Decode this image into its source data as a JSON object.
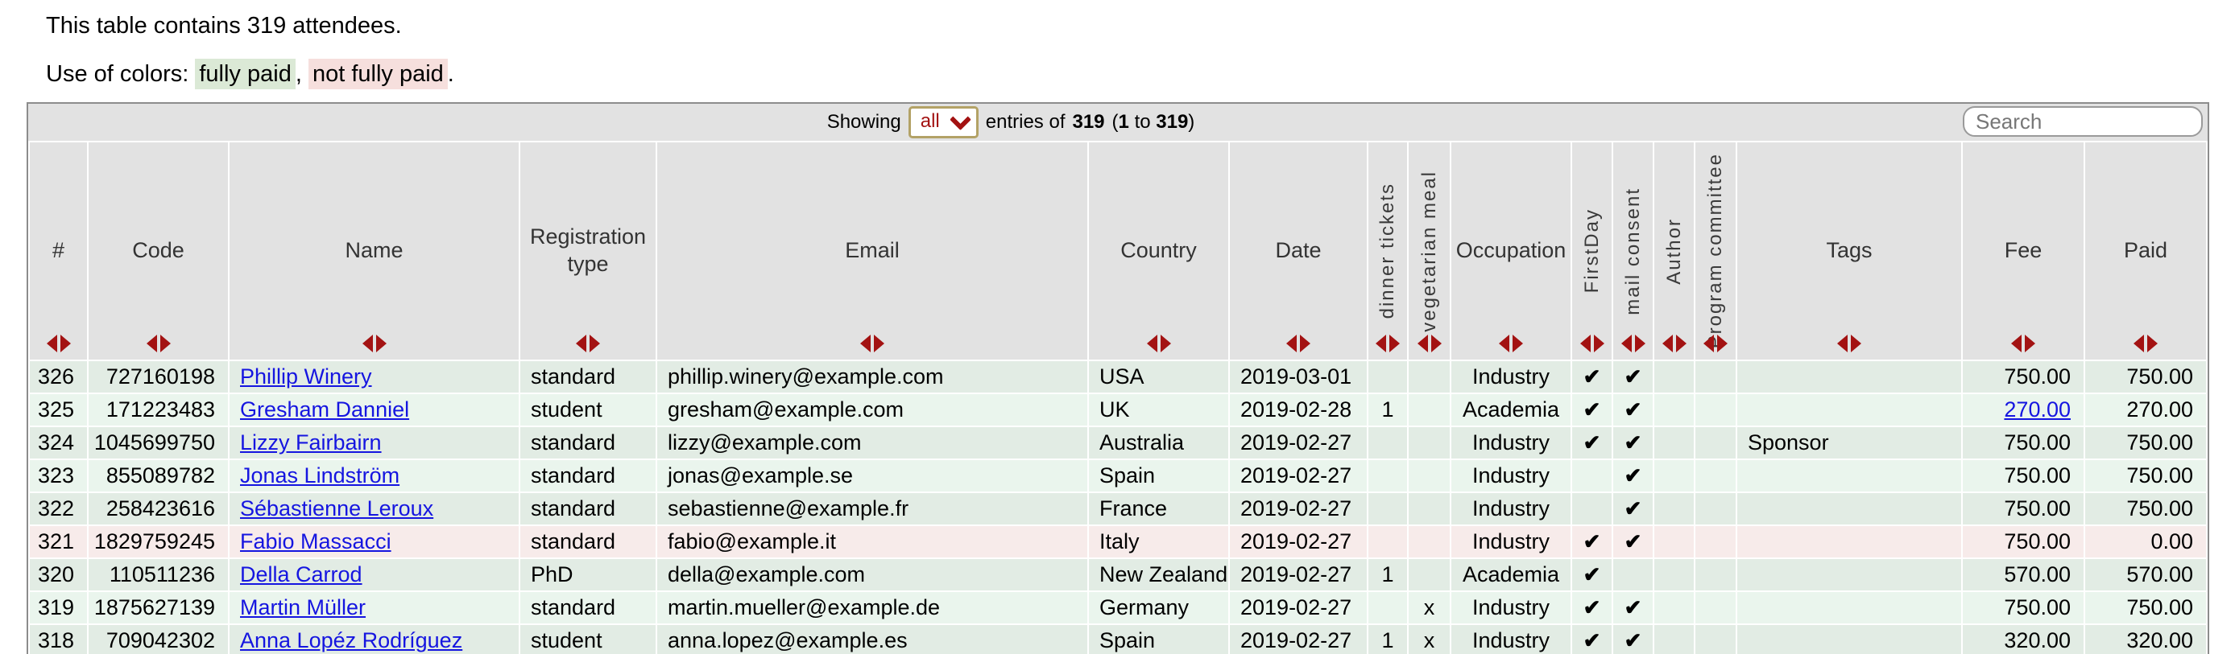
{
  "intro": {
    "line1": "This table contains 319 attendees."
  },
  "legend": {
    "prefix": "Use of colors:",
    "fully_paid": "fully paid",
    "comma": ",",
    "not_fully_paid": "not fully paid",
    "period": "."
  },
  "toolbar": {
    "showing_label": "Showing",
    "page_size_value": "all",
    "entries_of": "entries of",
    "total": "319",
    "range_open": "(",
    "range_from": "1",
    "range_to_word": "to",
    "range_to": "319",
    "range_close": ")",
    "search_placeholder": "Search"
  },
  "icons": {
    "sort_icon": "paired left/right red triangles (sort asc/desc)",
    "chevron_down_icon": "thick red chevron pointing down in page-size select"
  },
  "colors": {
    "accent_red": "#a31212",
    "link_blue": "#1515e0",
    "chrome_bg": "#e2e2e2",
    "table_border": "#8c8c8c",
    "select_border": "#b3a266",
    "fully_paid_bg": "#dbe9d6",
    "not_fully_paid_bg": "#f6dfdd",
    "row_green_dark": "#e2ece4",
    "row_green_light": "#eaf5ed",
    "row_not_fully_paid": "#f7ebea"
  },
  "columns": [
    {
      "key": "num",
      "label": "#",
      "rotated": false
    },
    {
      "key": "code",
      "label": "Code",
      "rotated": false
    },
    {
      "key": "name",
      "label": "Name",
      "rotated": false
    },
    {
      "key": "regtype",
      "label": "Registration type",
      "rotated": false
    },
    {
      "key": "email",
      "label": "Email",
      "rotated": false
    },
    {
      "key": "country",
      "label": "Country",
      "rotated": false
    },
    {
      "key": "date",
      "label": "Date",
      "rotated": false
    },
    {
      "key": "dinner",
      "label": "dinner tickets",
      "rotated": true
    },
    {
      "key": "veg",
      "label": "vegetarian meal",
      "rotated": true
    },
    {
      "key": "occupation",
      "label": "Occupation",
      "rotated": false
    },
    {
      "key": "firstday",
      "label": "FirstDay",
      "rotated": true
    },
    {
      "key": "mailconsent",
      "label": "mail consent",
      "rotated": true
    },
    {
      "key": "author",
      "label": "Author",
      "rotated": true
    },
    {
      "key": "pc",
      "label": "Program committee",
      "rotated": true
    },
    {
      "key": "tags",
      "label": "Tags",
      "rotated": false
    },
    {
      "key": "fee",
      "label": "Fee",
      "rotated": false
    },
    {
      "key": "paid",
      "label": "Paid",
      "rotated": false
    }
  ],
  "rows": [
    {
      "num": "326",
      "code": "727160198",
      "name": "Phillip Winery",
      "regtype": "standard",
      "email": "phillip.winery@example.com",
      "country": "USA",
      "date": "2019-03-01",
      "dinner": "",
      "veg": "",
      "occupation": "Industry",
      "firstday": "✔",
      "mailconsent": "✔",
      "author": "",
      "pc": "",
      "tags": "",
      "fee": "750.00",
      "paid": "750.00",
      "status": "fully-paid",
      "fee_is_link": false
    },
    {
      "num": "325",
      "code": "171223483",
      "name": "Gresham Danniel",
      "regtype": "student",
      "email": "gresham@example.com",
      "country": "UK",
      "date": "2019-02-28",
      "dinner": "1",
      "veg": "",
      "occupation": "Academia",
      "firstday": "✔",
      "mailconsent": "✔",
      "author": "",
      "pc": "",
      "tags": "",
      "fee": "270.00",
      "paid": "270.00",
      "status": "fully-paid",
      "fee_is_link": true
    },
    {
      "num": "324",
      "code": "1045699750",
      "name": "Lizzy Fairbairn",
      "regtype": "standard",
      "email": "lizzy@example.com",
      "country": "Australia",
      "date": "2019-02-27",
      "dinner": "",
      "veg": "",
      "occupation": "Industry",
      "firstday": "✔",
      "mailconsent": "✔",
      "author": "",
      "pc": "",
      "tags": "Sponsor",
      "fee": "750.00",
      "paid": "750.00",
      "status": "fully-paid",
      "fee_is_link": false
    },
    {
      "num": "323",
      "code": "855089782",
      "name": "Jonas Lindström",
      "regtype": "standard",
      "email": "jonas@example.se",
      "country": "Spain",
      "date": "2019-02-27",
      "dinner": "",
      "veg": "",
      "occupation": "Industry",
      "firstday": "",
      "mailconsent": "✔",
      "author": "",
      "pc": "",
      "tags": "",
      "fee": "750.00",
      "paid": "750.00",
      "status": "fully-paid",
      "fee_is_link": false
    },
    {
      "num": "322",
      "code": "258423616",
      "name": "Sébastienne Leroux",
      "regtype": "standard",
      "email": "sebastienne@example.fr",
      "country": "France",
      "date": "2019-02-27",
      "dinner": "",
      "veg": "",
      "occupation": "Industry",
      "firstday": "",
      "mailconsent": "✔",
      "author": "",
      "pc": "",
      "tags": "",
      "fee": "750.00",
      "paid": "750.00",
      "status": "fully-paid",
      "fee_is_link": false
    },
    {
      "num": "321",
      "code": "1829759245",
      "name": "Fabio Massacci",
      "regtype": "standard",
      "email": "fabio@example.it",
      "country": "Italy",
      "date": "2019-02-27",
      "dinner": "",
      "veg": "",
      "occupation": "Industry",
      "firstday": "✔",
      "mailconsent": "✔",
      "author": "",
      "pc": "",
      "tags": "",
      "fee": "750.00",
      "paid": "0.00",
      "status": "not-fully-paid",
      "fee_is_link": false
    },
    {
      "num": "320",
      "code": "110511236",
      "name": "Della Carrod",
      "regtype": "PhD",
      "email": "della@example.com",
      "country": "New Zealand",
      "date": "2019-02-27",
      "dinner": "1",
      "veg": "",
      "occupation": "Academia",
      "firstday": "✔",
      "mailconsent": "",
      "author": "",
      "pc": "",
      "tags": "",
      "fee": "570.00",
      "paid": "570.00",
      "status": "fully-paid",
      "fee_is_link": false
    },
    {
      "num": "319",
      "code": "1875627139",
      "name": "Martin Müller",
      "regtype": "standard",
      "email": "martin.mueller@example.de",
      "country": "Germany",
      "date": "2019-02-27",
      "dinner": "",
      "veg": "x",
      "occupation": "Industry",
      "firstday": "✔",
      "mailconsent": "✔",
      "author": "",
      "pc": "",
      "tags": "",
      "fee": "750.00",
      "paid": "750.00",
      "status": "fully-paid",
      "fee_is_link": false
    },
    {
      "num": "318",
      "code": "709042302",
      "name": "Anna Lopéz Rodríguez",
      "regtype": "student",
      "email": "anna.lopez@example.es",
      "country": "Spain",
      "date": "2019-02-27",
      "dinner": "1",
      "veg": "x",
      "occupation": "Industry",
      "firstday": "✔",
      "mailconsent": "✔",
      "author": "",
      "pc": "",
      "tags": "",
      "fee": "320.00",
      "paid": "320.00",
      "status": "fully-paid",
      "fee_is_link": false
    }
  ]
}
